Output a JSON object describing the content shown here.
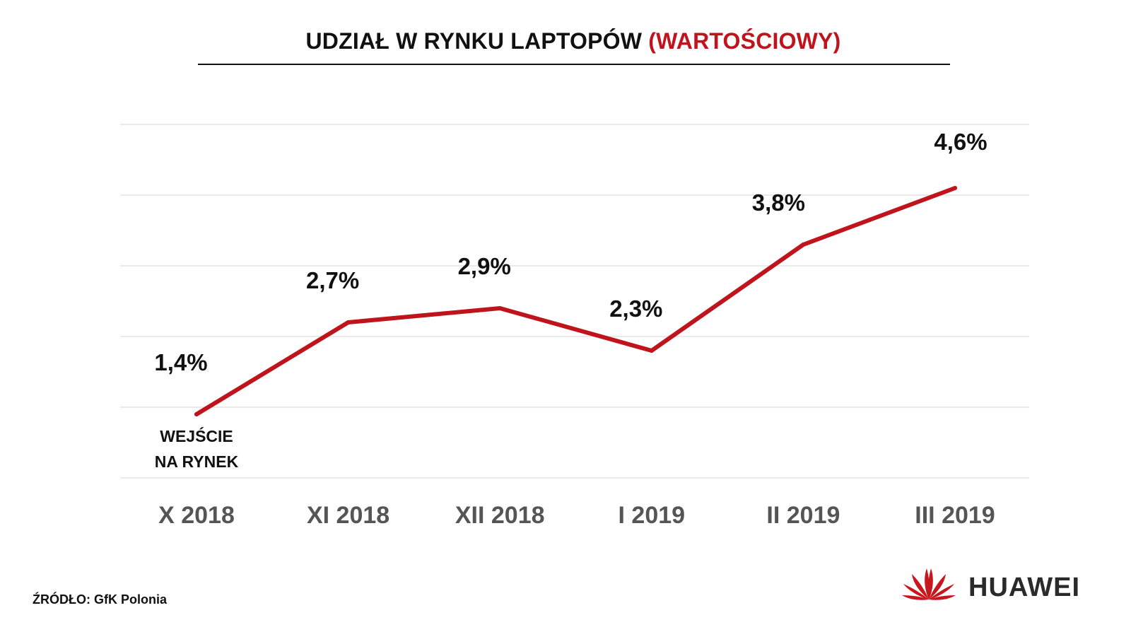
{
  "title": {
    "main": "UDZIAŁ W RYNKU LAPTOPÓW",
    "accent": "(WARTOŚCIOWY)"
  },
  "source": "ŹRÓDŁO: GfK Polonia",
  "brand": "HUAWEI",
  "colors": {
    "line": "#c0141c",
    "grid": "#e3e3e3",
    "tick_label": "#555555",
    "data_label": "#111111"
  },
  "chart_data": {
    "type": "line",
    "categories": [
      "X 2018",
      "XI 2018",
      "XII 2018",
      "I 2019",
      "II 2019",
      "III 2019"
    ],
    "series": [
      {
        "values": [
          1.4,
          2.7,
          2.9,
          2.3,
          3.8,
          4.6
        ]
      }
    ],
    "data_labels": [
      "1,4%",
      "2,7%",
      "2,9%",
      "2,3%",
      "3,8%",
      "4,6%"
    ],
    "annotations": [
      {
        "category": "X 2018",
        "lines": [
          "WEJŚCIE",
          "NA RYNEK"
        ]
      }
    ],
    "ylim": [
      0.5,
      5.5
    ],
    "gridlines": [
      0.5,
      1.5,
      2.5,
      3.5,
      4.5,
      5.5
    ],
    "grid": true,
    "legend": "none"
  }
}
